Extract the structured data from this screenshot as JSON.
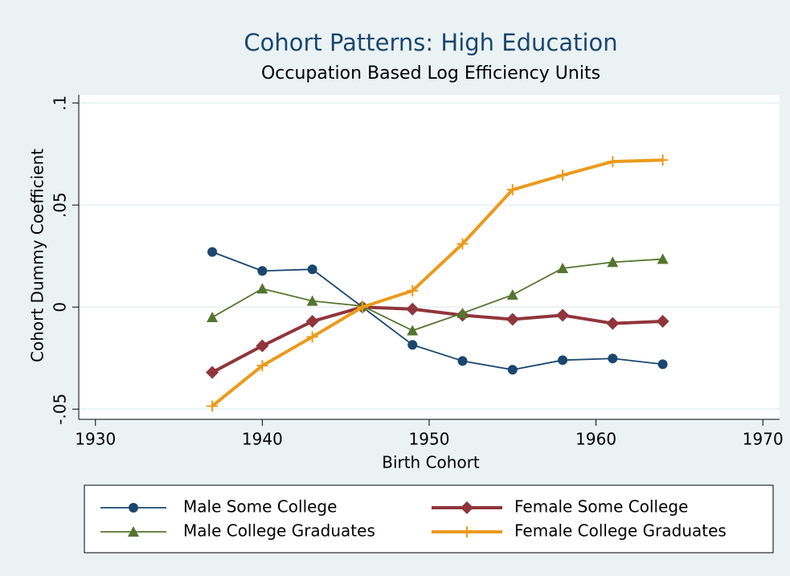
{
  "chart_data": {
    "type": "line",
    "title": "Cohort Patterns: High Education",
    "subtitle": "Occupation Based Log Efficiency Units",
    "x_label": "Birth Cohort",
    "y_label": "Cohort Dummy Coefficient",
    "x": [
      1937,
      1940,
      1943,
      1946,
      1949,
      1952,
      1955,
      1958,
      1961,
      1964
    ],
    "xlim": [
      1929,
      1971
    ],
    "xticks": [
      1930,
      1940,
      1950,
      1960,
      1970
    ],
    "ylim": [
      -0.055,
      0.104
    ],
    "yticks": [
      {
        "value": -0.05,
        "label": "-.05"
      },
      0,
      {
        "value": 0.05,
        "label": ".05"
      },
      {
        "value": 0.1,
        "label": ".1"
      }
    ],
    "grid": true,
    "legend": "bottom",
    "series": [
      {
        "name": "Male Some College",
        "color": "#1a476f",
        "marker": "circle",
        "values": [
          0.027,
          0.0177,
          0.0185,
          0,
          -0.0185,
          -0.0264,
          -0.0307,
          -0.026,
          -0.0252,
          -0.028
        ]
      },
      {
        "name": "Female Some College",
        "color": "#90353b",
        "marker": "diamond",
        "values": [
          -0.032,
          -0.019,
          -0.007,
          0,
          -0.001,
          -0.004,
          -0.006,
          -0.004,
          -0.008,
          -0.007
        ]
      },
      {
        "name": "Male College Graduates",
        "color": "#55752f",
        "marker": "triangle",
        "values": [
          -0.005,
          0.009,
          0.003,
          0.0005,
          -0.0115,
          -0.003,
          0.006,
          0.019,
          0.022,
          0.0235
        ]
      },
      {
        "name": "Female College Graduates",
        "color": "#eb9a1c",
        "marker": "plus",
        "values": [
          -0.0485,
          -0.0287,
          -0.0146,
          0,
          0.008,
          0.031,
          0.0575,
          0.0646,
          0.0713,
          0.072
        ]
      }
    ]
  }
}
